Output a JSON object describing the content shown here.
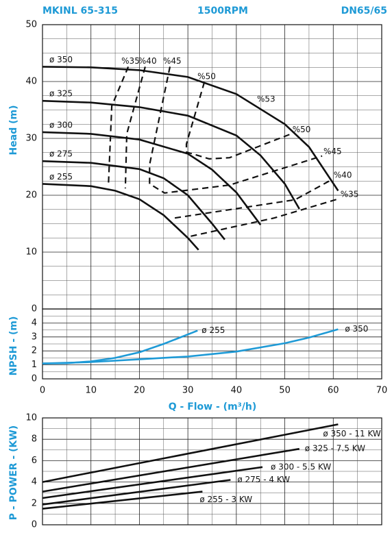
{
  "chart_data": [
    {
      "type": "line",
      "header": [
        "MKINL 65-315",
        "1500RPM",
        "DN65/65"
      ],
      "ylabel": "Head (m)",
      "xlim": [
        0,
        70
      ],
      "ylim": [
        0,
        50
      ],
      "yticks": [
        0,
        10,
        20,
        30,
        40,
        50
      ],
      "grid": true,
      "series": [
        {
          "name": "ø 350",
          "color": "#111111",
          "x": [
            0,
            10,
            20,
            30,
            40,
            50,
            55,
            61
          ],
          "values": [
            42.6,
            42.5,
            42,
            40.8,
            37.8,
            32.5,
            28.5,
            20.8
          ]
        },
        {
          "name": "ø 325",
          "color": "#111111",
          "x": [
            0,
            10,
            20,
            30,
            40,
            45,
            50,
            53
          ],
          "values": [
            36.6,
            36.3,
            35.5,
            34,
            30.5,
            27,
            22,
            17.6
          ]
        },
        {
          "name": "ø 300",
          "color": "#111111",
          "x": [
            0,
            10,
            20,
            30,
            35,
            40,
            45
          ],
          "values": [
            31.1,
            30.8,
            29.8,
            27.3,
            24.5,
            20.5,
            14.8
          ]
        },
        {
          "name": "ø 275",
          "color": "#111111",
          "x": [
            0,
            10,
            20,
            25,
            30,
            35,
            37.6
          ],
          "values": [
            26,
            25.7,
            24.6,
            23,
            20,
            15,
            12.2
          ]
        },
        {
          "name": "ø 255",
          "color": "#111111",
          "x": [
            0,
            10,
            15,
            20,
            25,
            30,
            32.2
          ],
          "values": [
            22,
            21.6,
            20.8,
            19.3,
            16.5,
            12.5,
            10.4
          ]
        }
      ],
      "efficiency": [
        {
          "name": "%35",
          "x": [
            17.7,
            14.3,
            13.6,
            null,
            30.6,
            47.8,
            61.2
          ],
          "values": [
            42.6,
            35.7,
            21.8,
            null,
            12.8,
            16.0,
            19.4
          ]
        },
        {
          "name": "%40",
          "x": [
            21.2,
            17.4,
            17.1,
            null,
            27.3,
            52.1,
            59.8
          ],
          "values": [
            42.6,
            30.8,
            21.2,
            null,
            16.0,
            19.2,
            22.8
          ]
        },
        {
          "name": "%45",
          "x": [
            26.3,
            22.1,
            22.1,
            25.2,
            38.6,
            57.7
          ],
          "values": [
            42.6,
            25.4,
            22.0,
            20.4,
            21.8,
            26.9
          ]
        },
        {
          "name": "%50",
          "x": [
            33.4,
            29.7,
            29.7,
            34.4,
            38.6,
            51.3
          ],
          "values": [
            39.9,
            29.0,
            27.6,
            26.4,
            26.6,
            30.8
          ]
        }
      ],
      "annotations": [
        "%53"
      ]
    },
    {
      "type": "line",
      "ylabel": "NPSH - (m)",
      "xlabel": "Q - Flow - (m³/h)",
      "xlim": [
        0,
        70
      ],
      "xticks": [
        0,
        10,
        20,
        30,
        40,
        50,
        60,
        70
      ],
      "ylim": [
        0,
        5
      ],
      "yticks": [
        0,
        1,
        2,
        3,
        4
      ],
      "grid": true,
      "series": [
        {
          "name": "ø 255",
          "color": "#1e9ad6",
          "x": [
            0,
            5,
            10,
            15,
            20,
            25,
            32
          ],
          "values": [
            1.1,
            1.12,
            1.25,
            1.5,
            1.9,
            2.5,
            3.45
          ]
        },
        {
          "name": "ø 350",
          "color": "#1e9ad6",
          "x": [
            0,
            10,
            20,
            30,
            40,
            50,
            55,
            61
          ],
          "values": [
            1.1,
            1.2,
            1.4,
            1.6,
            1.95,
            2.55,
            2.95,
            3.55
          ]
        }
      ]
    },
    {
      "type": "line",
      "ylabel": "P - POWER - (KW)",
      "xlim": [
        0,
        70
      ],
      "ylim": [
        0,
        10
      ],
      "yticks": [
        0,
        2,
        4,
        6,
        8,
        10
      ],
      "grid": true,
      "series": [
        {
          "name": "ø 350 - 11 KW",
          "color": "#111111",
          "x": [
            0,
            61
          ],
          "values": [
            4,
            9.4
          ]
        },
        {
          "name": "ø 325 - 7.5 KW",
          "color": "#111111",
          "x": [
            0,
            53
          ],
          "values": [
            3.1,
            7.1
          ]
        },
        {
          "name": "ø 300 - 5.5 KW",
          "color": "#111111",
          "x": [
            0,
            45.4
          ],
          "values": [
            2.5,
            5.4
          ]
        },
        {
          "name": "ø 275 - 4 KW",
          "color": "#111111",
          "x": [
            0,
            38.8
          ],
          "values": [
            1.9,
            4.2
          ]
        },
        {
          "name": "ø 255 - 3 KW",
          "color": "#111111",
          "x": [
            0,
            33
          ],
          "values": [
            1.5,
            3.1
          ]
        }
      ]
    }
  ]
}
